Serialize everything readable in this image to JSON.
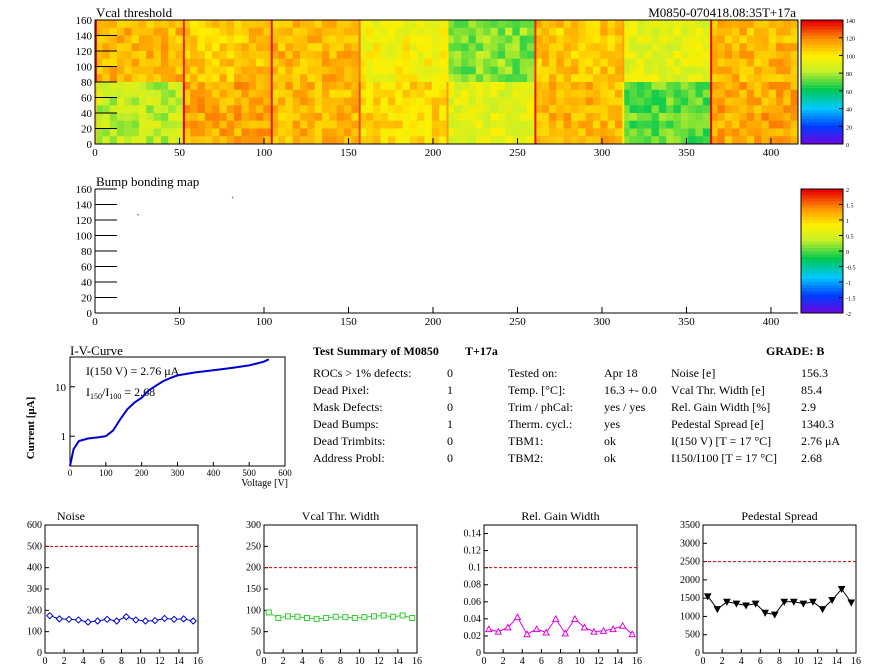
{
  "header": {
    "vcal_title": "Vcal threshold",
    "module_tag": "M0850-070418.08:35T+17a",
    "bump_title": "Bump bonding map"
  },
  "colors": {
    "noise": "#0000cc",
    "vcal_width": "#33cc33",
    "gain_width": "#e000e0",
    "pedestal": "#000000",
    "limit_line": "#cc0000",
    "iv_curve": "#0000cc"
  },
  "maps": {
    "x_ticks": [
      "0",
      "50",
      "100",
      "150",
      "200",
      "250",
      "300",
      "350",
      "400"
    ],
    "y_ticks": [
      "0",
      "20",
      "40",
      "60",
      "80",
      "100",
      "120",
      "140",
      "160"
    ],
    "vcal_colorbar_ticks": [
      "0",
      "20",
      "40",
      "60",
      "80",
      "100",
      "120",
      "140"
    ],
    "bump_colorbar_ticks": [
      "-2",
      "-1.5",
      "-1",
      "-0.5",
      "0",
      "0.5",
      "1",
      "1.5",
      "2"
    ],
    "vcal_x_range": [
      0,
      416
    ],
    "vcal_y_range": [
      0,
      160
    ],
    "vcal_blocks": [
      {
        "roc": 0,
        "col": 0,
        "row": 1,
        "level": 0.8
      },
      {
        "roc": 1,
        "col": 1,
        "row": 1,
        "level": 0.78
      },
      {
        "roc": 2,
        "col": 2,
        "row": 1,
        "level": 0.8
      },
      {
        "roc": 3,
        "col": 3,
        "row": 1,
        "level": 0.7
      },
      {
        "roc": 4,
        "col": 4,
        "row": 1,
        "level": 0.55
      },
      {
        "roc": 5,
        "col": 5,
        "row": 1,
        "level": 0.78
      },
      {
        "roc": 6,
        "col": 6,
        "row": 1,
        "level": 0.66
      },
      {
        "roc": 7,
        "col": 7,
        "row": 1,
        "level": 0.8
      },
      {
        "roc": 8,
        "col": 0,
        "row": 0,
        "level": 0.6
      },
      {
        "roc": 9,
        "col": 1,
        "row": 0,
        "level": 0.82
      },
      {
        "roc": 10,
        "col": 2,
        "row": 0,
        "level": 0.8
      },
      {
        "roc": 11,
        "col": 3,
        "row": 0,
        "level": 0.75
      },
      {
        "roc": 12,
        "col": 4,
        "row": 0,
        "level": 0.66
      },
      {
        "roc": 13,
        "col": 5,
        "row": 0,
        "level": 0.8
      },
      {
        "roc": 14,
        "col": 6,
        "row": 0,
        "level": 0.52
      },
      {
        "roc": 15,
        "col": 7,
        "row": 0,
        "level": 0.82
      }
    ],
    "bump_defects": [
      {
        "x": 25,
        "y": 128
      },
      {
        "x": 81,
        "y": 150
      }
    ]
  },
  "iv": {
    "title": "I-V-Curve",
    "ylabel": "Current [μA]",
    "xlabel": "Voltage [V]",
    "i150_label": "I(150 V) = 2.76 μA",
    "ratio_label_main": "I",
    "ratio_sub1": "150",
    "ratio_mid": "/I",
    "ratio_sub2": "100",
    "ratio_value": " =  2.68",
    "x_ticks": [
      "0",
      "100",
      "200",
      "300",
      "400",
      "500",
      "600"
    ],
    "y_ticks": [
      "1",
      "10"
    ]
  },
  "summary": {
    "title": "Test Summary of M0850",
    "temp_tag": "T+17a",
    "grade": "GRADE:  B",
    "col1": [
      {
        "label": "ROCs > 1% defects:",
        "value": "0"
      },
      {
        "label": "Dead Pixel:",
        "value": "1"
      },
      {
        "label": "Mask Defects:",
        "value": "0"
      },
      {
        "label": "Dead Bumps:",
        "value": "1"
      },
      {
        "label": "Dead Trimbits:",
        "value": "0"
      },
      {
        "label": "Address Probl:",
        "value": "0"
      }
    ],
    "col2": [
      {
        "label": "Tested on:",
        "value": "Apr 18"
      },
      {
        "label": "Temp. [°C]:",
        "value": "16.3 +- 0.0"
      },
      {
        "label": "Trim / phCal:",
        "value": "yes / yes"
      },
      {
        "label": "Therm. cycl.:",
        "value": "yes"
      },
      {
        "label": "TBM1:",
        "value": "ok"
      },
      {
        "label": "TBM2:",
        "value": "ok"
      }
    ],
    "col3": [
      {
        "label": "Noise [e]",
        "value": "156.3"
      },
      {
        "label": "Vcal Thr. Width [e]",
        "value": "85.4"
      },
      {
        "label": "Rel. Gain Width [%]",
        "value": "2.9"
      },
      {
        "label": "Pedestal Spread [e]",
        "value": "1340.3"
      },
      {
        "label": "I(150 V) [T = 17 °C]",
        "value": "2.76 μA"
      },
      {
        "label": "I150/I100  [T = 17 °C]",
        "value": "2.68"
      }
    ]
  },
  "chart_data": [
    {
      "type": "line",
      "title": "I-V-Curve",
      "xlabel": "Voltage [V]",
      "ylabel": "Current [μA]",
      "log_y": true,
      "xlim": [
        0,
        600
      ],
      "ylim": [
        0.25,
        40
      ],
      "x": [
        0,
        10,
        25,
        50,
        80,
        100,
        120,
        140,
        160,
        180,
        200,
        220,
        240,
        260,
        280,
        300,
        350,
        400,
        450,
        500,
        540,
        555
      ],
      "y": [
        0.25,
        0.55,
        0.8,
        0.9,
        0.95,
        1.0,
        1.3,
        2.2,
        3.5,
        4.8,
        6.0,
        8.5,
        10.5,
        13.0,
        15.0,
        17.0,
        19.5,
        21.5,
        24.0,
        27.0,
        32.0,
        36.0
      ]
    },
    {
      "type": "line",
      "title": "Noise",
      "xlim": [
        0,
        16
      ],
      "ylim": [
        0,
        600
      ],
      "x_ticks": [
        "0",
        "2",
        "4",
        "6",
        "8",
        "10",
        "12",
        "14",
        "16"
      ],
      "y_ticks": [
        "0",
        "100",
        "200",
        "300",
        "400",
        "500",
        "600"
      ],
      "limit": 500,
      "x": [
        0.5,
        1.5,
        2.5,
        3.5,
        4.5,
        5.5,
        6.5,
        7.5,
        8.5,
        9.5,
        10.5,
        11.5,
        12.5,
        13.5,
        14.5,
        15.5
      ],
      "values": [
        175,
        160,
        158,
        155,
        145,
        150,
        158,
        150,
        170,
        155,
        150,
        152,
        162,
        158,
        160,
        150
      ]
    },
    {
      "type": "line",
      "title": "Vcal Thr. Width",
      "xlim": [
        0,
        16
      ],
      "ylim": [
        0,
        300
      ],
      "x_ticks": [
        "0",
        "2",
        "4",
        "6",
        "8",
        "10",
        "12",
        "14",
        "16"
      ],
      "y_ticks": [
        "0",
        "50",
        "100",
        "150",
        "200",
        "250",
        "300"
      ],
      "limit": 200,
      "x": [
        0.5,
        1.5,
        2.5,
        3.5,
        4.5,
        5.5,
        6.5,
        7.5,
        8.5,
        9.5,
        10.5,
        11.5,
        12.5,
        13.5,
        14.5,
        15.5
      ],
      "values": [
        95,
        82,
        86,
        85,
        82,
        80,
        82,
        85,
        84,
        82,
        84,
        86,
        88,
        85,
        88,
        82
      ]
    },
    {
      "type": "line",
      "title": "Rel. Gain Width",
      "xlim": [
        0,
        16
      ],
      "ylim": [
        0,
        0.15
      ],
      "x_ticks": [
        "0",
        "2",
        "4",
        "6",
        "8",
        "10",
        "12",
        "14",
        "16"
      ],
      "y_ticks": [
        "0",
        "0.02",
        "0.04",
        "0.06",
        "0.08",
        "0.1",
        "0.12",
        "0.14"
      ],
      "limit": 0.1,
      "x": [
        0.5,
        1.5,
        2.5,
        3.5,
        4.5,
        5.5,
        6.5,
        7.5,
        8.5,
        9.5,
        10.5,
        11.5,
        12.5,
        13.5,
        14.5,
        15.5
      ],
      "values": [
        0.028,
        0.025,
        0.03,
        0.042,
        0.022,
        0.028,
        0.024,
        0.04,
        0.023,
        0.04,
        0.03,
        0.025,
        0.026,
        0.028,
        0.032,
        0.022
      ]
    },
    {
      "type": "line",
      "title": "Pedestal Spread",
      "xlim": [
        0,
        16
      ],
      "ylim": [
        0,
        3500
      ],
      "x_ticks": [
        "0",
        "2",
        "4",
        "6",
        "8",
        "10",
        "12",
        "14",
        "16"
      ],
      "y_ticks": [
        "0",
        "500",
        "1000",
        "1500",
        "2000",
        "2500",
        "3000",
        "3500"
      ],
      "limit": 2500,
      "x": [
        0.5,
        1.5,
        2.5,
        3.5,
        4.5,
        5.5,
        6.5,
        7.5,
        8.5,
        9.5,
        10.5,
        11.5,
        12.5,
        13.5,
        14.5,
        15.5
      ],
      "values": [
        1550,
        1200,
        1400,
        1350,
        1300,
        1350,
        1100,
        1050,
        1400,
        1400,
        1350,
        1400,
        1200,
        1450,
        1750,
        1380
      ]
    }
  ]
}
